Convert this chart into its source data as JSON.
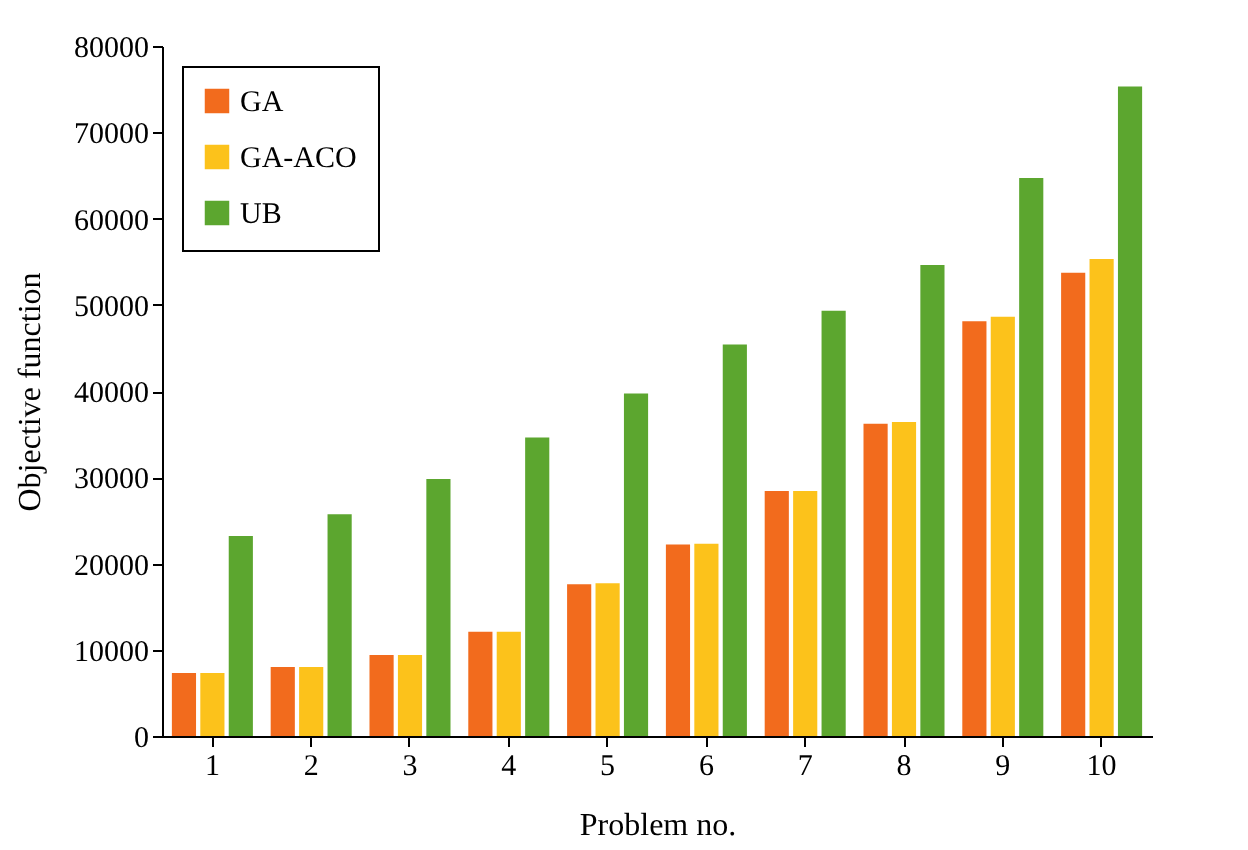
{
  "chart_data": {
    "type": "bar",
    "xlabel": "Problem no.",
    "ylabel": "Objective function",
    "categories": [
      "1",
      "2",
      "3",
      "4",
      "5",
      "6",
      "7",
      "8",
      "9",
      "10"
    ],
    "series": [
      {
        "name": "GA",
        "color": "#f26b1d",
        "values": [
          7300,
          8000,
          9400,
          12100,
          17600,
          22200,
          28400,
          36200,
          48100,
          53700
        ]
      },
      {
        "name": "GA-ACO",
        "color": "#fcc21b",
        "values": [
          7300,
          8000,
          9400,
          12100,
          17700,
          22300,
          28400,
          36400,
          48600,
          55300
        ]
      },
      {
        "name": "UB",
        "color": "#5ca62f",
        "values": [
          23200,
          25700,
          29800,
          34600,
          39700,
          45400,
          49300,
          54600,
          64700,
          75300
        ]
      }
    ],
    "ylim": [
      0,
      80000
    ],
    "yticks": [
      0,
      10000,
      20000,
      30000,
      40000,
      50000,
      60000,
      70000,
      80000
    ],
    "grid": false,
    "legend": "top left"
  }
}
